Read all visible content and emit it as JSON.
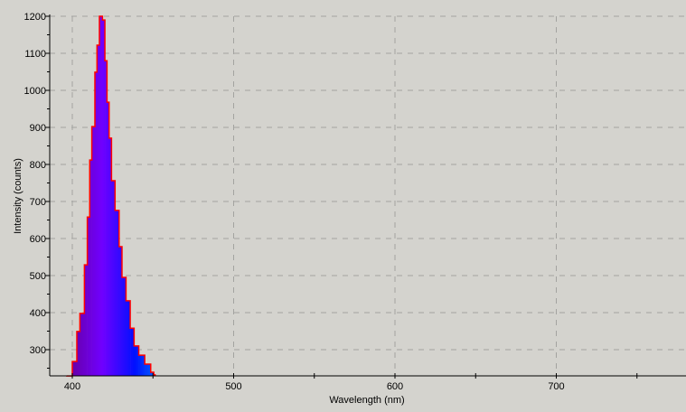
{
  "chart_data": {
    "type": "area",
    "title": "",
    "xlabel": "Wavelength (nm)",
    "ylabel": "Intensity (counts)",
    "xlim": [
      386,
      780
    ],
    "ylim": [
      229,
      1200
    ],
    "grid": true,
    "x_ticks": [
      "400",
      "500",
      "600",
      "700"
    ],
    "y_ticks": [
      "300",
      "400",
      "500",
      "600",
      "700",
      "800",
      "900",
      "1000",
      "1100",
      "1200"
    ],
    "fill_colors": [
      "#66009e",
      "#7000ff",
      "#0010ff",
      "#0058ff"
    ],
    "outline_color": "#ff0000",
    "background_color": "#d4d3ce",
    "series": [
      {
        "x": [
          396.6,
          400,
          402.8,
          404.7,
          407.5,
          409.3,
          410.8,
          412.1,
          414,
          415.3,
          416.8,
          418.7,
          420.2,
          421.5,
          422.8,
          424.3,
          426.5,
          429,
          430.8,
          433.3,
          435.9,
          438.3,
          441.2,
          444.9,
          448.6,
          450.5
        ],
        "y": [
          229,
          268,
          349,
          398,
          529,
          658,
          812,
          902,
          1049,
          1122,
          1200,
          1190,
          1080,
          968,
          871,
          756,
          676,
          578,
          495,
          432,
          358,
          310,
          285,
          261,
          239,
          232
        ]
      }
    ]
  }
}
